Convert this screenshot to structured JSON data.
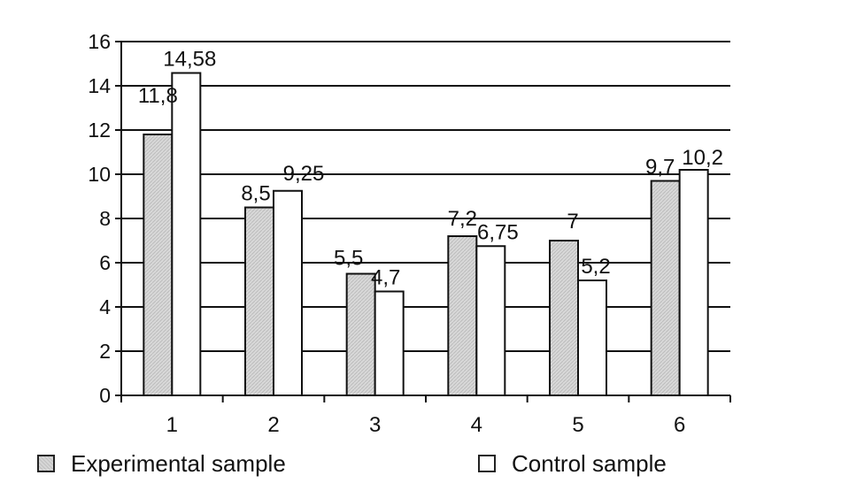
{
  "chart_data": {
    "type": "bar",
    "title": "",
    "xlabel": "",
    "ylabel": "",
    "categories": [
      "1",
      "2",
      "3",
      "4",
      "5",
      "6"
    ],
    "series": [
      {
        "name": "Experimental sample",
        "values": [
          11.8,
          8.5,
          5.5,
          7.2,
          7,
          9.7
        ],
        "labels": [
          "11,8",
          "8,5",
          "5,5",
          "7,2",
          "7",
          "9,7"
        ],
        "color": "#d6d6d6"
      },
      {
        "name": "Control sample",
        "values": [
          14.58,
          9.25,
          4.7,
          6.75,
          5.2,
          10.2
        ],
        "labels": [
          "14,58",
          "9,25",
          "4,7",
          "6,75",
          "5,2",
          "10,2"
        ],
        "color": "#ffffff"
      }
    ],
    "ylim": [
      0,
      16
    ],
    "yticks": [
      0,
      2,
      4,
      6,
      8,
      10,
      12,
      14,
      16
    ],
    "grid": true,
    "legend_position": "bottom"
  },
  "legend": {
    "experimental_label": "Experimental sample",
    "control_label": "Control sample"
  }
}
